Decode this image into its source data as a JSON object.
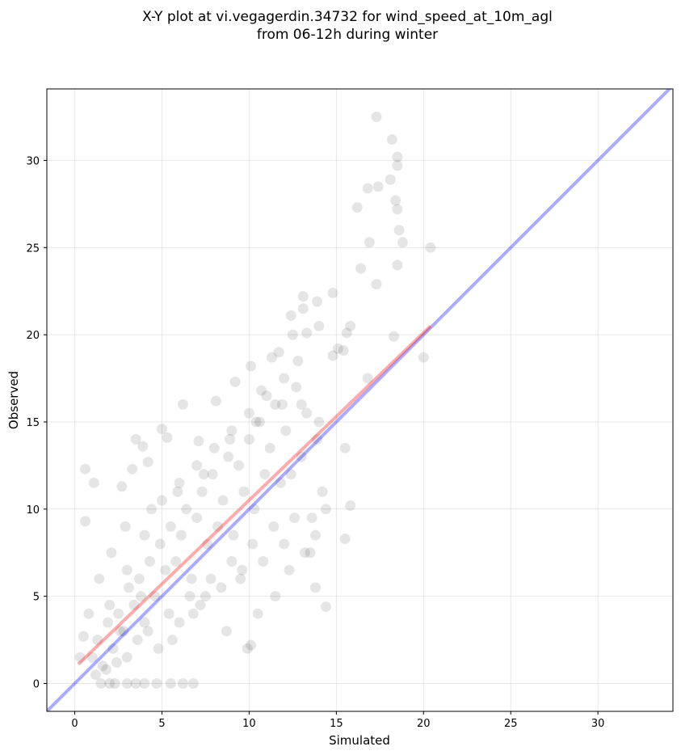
{
  "chart_data": {
    "type": "scatter",
    "title": [
      "X-Y plot at vi.vegagerdin.34732 for wind_speed_at_10m_agl",
      "from 06-12h during winter"
    ],
    "xlabel": "Simulated",
    "ylabel": "Observed",
    "xlim": [
      -1.6,
      34.3
    ],
    "ylim": [
      -1.6,
      34.1
    ],
    "xticks": [
      0,
      5,
      10,
      15,
      20,
      25,
      30
    ],
    "yticks": [
      0,
      5,
      10,
      15,
      20,
      25,
      30
    ],
    "grid": true,
    "points": {
      "color": "#000000",
      "opacity": 0.1,
      "x": [
        17.3,
        18.2,
        18.5,
        18.5,
        18.1,
        16.8,
        17.4,
        18.4,
        18.5,
        16.2,
        18.6,
        18.8,
        16.9,
        20.4,
        16.4,
        18.5,
        17.3,
        14.8,
        13.1,
        13.1,
        12.4,
        13.9,
        14.0,
        15.8,
        18.3,
        20.0,
        15.6,
        15.1,
        15.4,
        14.8,
        16.8,
        12.5,
        13.3,
        15.8,
        15.5,
        15.5,
        14.4,
        13.8,
        9.9,
        10.1,
        0.6,
        1.1,
        0.6,
        0.5,
        0.3,
        2.0,
        3.0,
        4.0,
        5.5,
        6.2,
        6.8,
        1.5,
        2.3,
        3.5,
        4.7,
        5.0,
        3.5,
        3.9,
        5.3,
        2.7,
        3.3,
        4.2,
        6.2,
        7.1,
        8.1,
        9.2,
        10.1,
        11.3,
        11.7,
        10.7,
        1.0,
        1.3,
        1.6,
        1.9,
        2.2,
        2.5,
        2.8,
        3.1,
        3.4,
        3.7,
        4.0,
        4.3,
        4.6,
        4.9,
        5.2,
        5.5,
        5.8,
        6.1,
        6.4,
        6.7,
        7.0,
        7.3,
        7.6,
        7.9,
        8.2,
        8.5,
        8.8,
        9.1,
        9.4,
        9.7,
        10.0,
        10.3,
        10.6,
        10.9,
        11.2,
        11.5,
        11.8,
        12.1,
        12.4,
        12.7,
        13.0,
        13.3,
        13.6,
        13.9,
        14.2,
        1.2,
        1.8,
        2.4,
        3.0,
        3.6,
        4.2,
        4.8,
        5.4,
        6.0,
        6.6,
        7.2,
        7.8,
        8.4,
        9.0,
        9.6,
        10.2,
        10.8,
        11.4,
        12.0,
        12.6,
        13.2,
        13.8,
        14.4,
        2.0,
        3.0,
        4.0,
        5.0,
        6.0,
        7.0,
        8.0,
        9.0,
        10.0,
        11.0,
        12.0,
        13.0,
        14.0,
        2.6,
        3.8,
        5.6,
        6.8,
        7.5,
        8.7,
        9.5,
        10.5,
        11.5,
        12.3,
        13.5,
        0.8,
        1.4,
        2.1,
        2.9,
        4.4,
        5.9,
        7.4,
        8.9,
        10.4,
        11.9,
        12.8
      ],
      "y": [
        32.5,
        31.2,
        30.2,
        29.7,
        28.9,
        28.4,
        28.5,
        27.7,
        27.2,
        27.3,
        26.0,
        25.3,
        25.3,
        25.0,
        23.8,
        24.0,
        22.9,
        22.4,
        22.2,
        21.5,
        21.1,
        21.9,
        20.5,
        20.5,
        19.9,
        18.7,
        20.1,
        19.2,
        19.1,
        18.8,
        17.5,
        20.0,
        20.1,
        10.2,
        8.3,
        13.5,
        4.4,
        5.5,
        2.0,
        2.2,
        12.3,
        11.5,
        9.3,
        2.7,
        1.5,
        0.0,
        0.0,
        0.0,
        0.0,
        0.0,
        0.0,
        0.0,
        0.0,
        0.0,
        0.0,
        14.6,
        14.0,
        13.6,
        14.1,
        11.3,
        12.3,
        12.7,
        16.0,
        13.9,
        16.2,
        17.3,
        18.2,
        18.7,
        19.0,
        16.8,
        1.5,
        2.5,
        1.0,
        3.5,
        2.0,
        4.0,
        3.0,
        5.5,
        4.5,
        6.0,
        3.5,
        7.0,
        5.0,
        8.0,
        6.5,
        9.0,
        7.0,
        8.5,
        10.0,
        6.0,
        9.5,
        11.0,
        8.0,
        12.0,
        9.0,
        10.5,
        13.0,
        8.5,
        12.5,
        11.0,
        14.0,
        10.0,
        15.0,
        12.0,
        13.5,
        16.0,
        11.5,
        14.5,
        12.0,
        17.0,
        13.0,
        15.5,
        9.5,
        14.0,
        11.0,
        0.5,
        0.8,
        1.2,
        1.5,
        2.5,
        3.0,
        2.0,
        4.0,
        3.5,
        5.0,
        4.5,
        6.0,
        5.5,
        7.0,
        6.5,
        8.0,
        7.0,
        9.0,
        8.0,
        9.5,
        7.5,
        8.5,
        10.0,
        4.5,
        6.5,
        8.5,
        10.5,
        11.5,
        12.5,
        13.5,
        14.5,
        15.5,
        16.5,
        17.5,
        16.0,
        15.0,
        3.0,
        5.0,
        2.5,
        4.0,
        5.0,
        3.0,
        6.0,
        4.0,
        5.0,
        6.5,
        7.5,
        4.0,
        6.0,
        7.5,
        9.0,
        10.0,
        11.0,
        12.0,
        14.0,
        15.0,
        16.0,
        18.5
      ]
    },
    "lines": [
      {
        "color": "#0000ff",
        "opacity": 0.33,
        "x": [
          -1.6,
          34.3
        ],
        "y": [
          -1.6,
          34.3
        ]
      },
      {
        "color": "#ff0000",
        "opacity": 0.33,
        "x": [
          0.2,
          20.4
        ],
        "y": [
          1.1,
          20.5
        ]
      }
    ]
  }
}
